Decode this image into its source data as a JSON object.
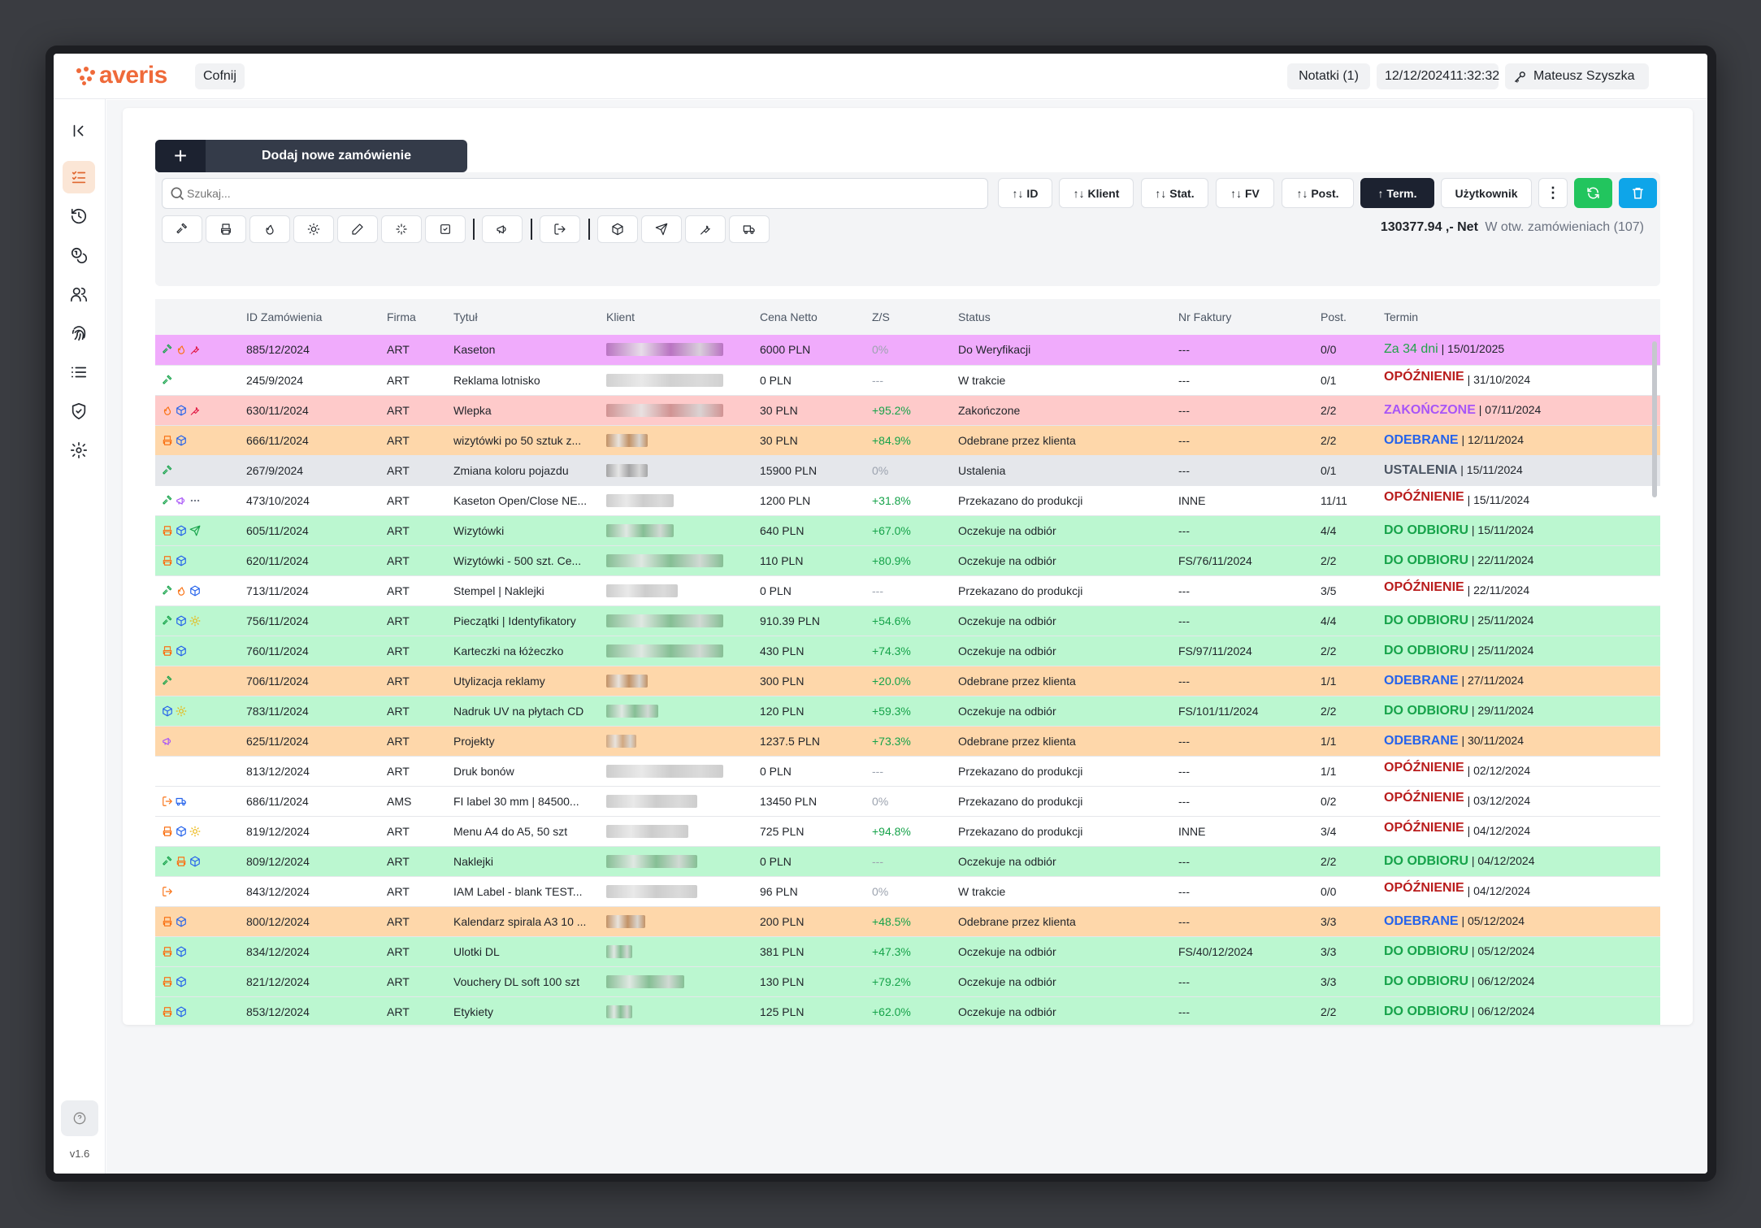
{
  "header": {
    "logo": "averis",
    "back_label": "Cofnij",
    "notes_label": "Notatki (1)",
    "date": "12/12/2024",
    "time": "11:32:32",
    "user": "Mateusz Szyszka"
  },
  "sidebar": {
    "items": [
      {
        "icon": "orders-list-icon",
        "active": true
      },
      {
        "icon": "history-icon"
      },
      {
        "icon": "coins-icon"
      },
      {
        "icon": "users-icon"
      },
      {
        "icon": "fingerprint-icon"
      },
      {
        "icon": "list-icon"
      },
      {
        "icon": "shield-check-icon"
      },
      {
        "icon": "gear-icon"
      }
    ],
    "help_icon": "help-circle-icon",
    "version": "v1.6",
    "logout_icon": "logout-icon"
  },
  "toolbar": {
    "add_label": "Dodaj nowe zamówienie",
    "search_placeholder": "Szukaj...",
    "sort_buttons": [
      {
        "label": "↑↓ ID"
      },
      {
        "label": "↑↓ Klient"
      },
      {
        "label": "↑↓ Stat."
      },
      {
        "label": "↑↓ FV"
      },
      {
        "label": "↑↓ Post."
      },
      {
        "label": "↑ Term.",
        "active": true
      },
      {
        "label": "Użytkownik"
      }
    ],
    "filter_icons": [
      "hammer-icon",
      "printer-icon",
      "flame-icon",
      "sun-icon",
      "pen-icon",
      "sparkle-icon",
      "checkbox-icon",
      "megaphone-icon",
      "exit-icon",
      "box-icon",
      "send-icon",
      "wrench-icon",
      "truck-icon"
    ],
    "summary_total": "130377.94 ,- Net",
    "summary_open": "W otw. zamówieniach (107)"
  },
  "table": {
    "columns": [
      "ID Zamówienia",
      "Firma",
      "Tytuł",
      "Klient",
      "Cena Netto",
      "Z/S",
      "Status",
      "Nr Faktury",
      "Post.",
      "Termin"
    ],
    "rows": [
      {
        "color": "purple",
        "icons": [
          "hammer",
          "flame",
          "wrench"
        ],
        "id": "885/12/2024",
        "firma": "ART",
        "tytul": "Kaseton",
        "klient_blur": 0.9,
        "klient_tone": "#b06ab8",
        "cena": "6000 PLN",
        "zs": "0%",
        "status": "Do Weryfikacji",
        "fv": "---",
        "post": "0/0",
        "term_label": "Za 34 dni",
        "term_kind": "days",
        "term_date": "| 15/01/2025"
      },
      {
        "color": "white",
        "icons": [
          "hammer"
        ],
        "id": "245/9/2024",
        "firma": "ART",
        "tytul": "Reklama lotnisko",
        "klient_blur": 0.9,
        "klient_tone": "#c9c9c9",
        "cena": "0 PLN",
        "zs": "---",
        "status": "W trakcie",
        "fv": "---",
        "post": "0/1",
        "term_label": "OPÓŹNIENIE",
        "term_kind": "delay",
        "term_date": "| 31/10/2024"
      },
      {
        "color": "red",
        "icons": [
          "flame",
          "box",
          "wrench"
        ],
        "id": "630/11/2024",
        "firma": "ART",
        "tytul": "Wlepka",
        "klient_blur": 0.9,
        "klient_tone": "#c98a8a",
        "cena": "30 PLN",
        "zs": "+95.2%",
        "status": "Zakończone",
        "fv": "---",
        "post": "2/2",
        "term_label": "ZAKOŃCZONE",
        "term_kind": "done",
        "term_date": "| 07/11/2024"
      },
      {
        "color": "orange",
        "icons": [
          "printer",
          "box"
        ],
        "id": "666/11/2024",
        "firma": "ART",
        "tytul": "wizytówki po 50 sztuk z...",
        "klient_blur": 0.32,
        "klient_tone": "#b8865a",
        "cena": "30 PLN",
        "zs": "+84.9%",
        "status": "Odebrane przez klienta",
        "fv": "---",
        "post": "2/2",
        "term_label": "ODEBRANE",
        "term_kind": "received",
        "term_date": "| 12/11/2024"
      },
      {
        "color": "gray",
        "icons": [
          "hammer"
        ],
        "id": "267/9/2024",
        "firma": "ART",
        "tytul": "Zmiana koloru pojazdu",
        "klient_blur": 0.32,
        "klient_tone": "#9a9a9a",
        "cena": "15900 PLN",
        "zs": "0%",
        "status": "Ustalenia",
        "fv": "---",
        "post": "0/1",
        "term_label": "USTALENIA",
        "term_kind": "setup",
        "term_date": "| 15/11/2024"
      },
      {
        "color": "white",
        "icons": [
          "hammer",
          "megaphone",
          "dots"
        ],
        "id": "473/10/2024",
        "firma": "ART",
        "tytul": "Kaseton Open/Close NE...",
        "klient_blur": 0.52,
        "klient_tone": "#c4c4c4",
        "cena": "1200 PLN",
        "zs": "+31.8%",
        "status": "Przekazano do produkcji",
        "fv": "INNE",
        "post": "11/11",
        "term_label": "OPÓŹNIENIE",
        "term_kind": "delay",
        "term_date": "| 15/11/2024"
      },
      {
        "color": "green",
        "icons": [
          "printer",
          "box",
          "send"
        ],
        "id": "605/11/2024",
        "firma": "ART",
        "tytul": "Wizytówki",
        "klient_blur": 0.52,
        "klient_tone": "#7cb58a",
        "cena": "640 PLN",
        "zs": "+67.0%",
        "status": "Oczekuje na odbiór",
        "fv": "---",
        "post": "4/4",
        "term_label": "DO ODBIORU",
        "term_kind": "pickup",
        "term_date": "| 15/11/2024"
      },
      {
        "color": "green",
        "icons": [
          "printer",
          "box"
        ],
        "id": "620/11/2024",
        "firma": "ART",
        "tytul": "Wizytówki - 500 szt. Ce...",
        "klient_blur": 0.9,
        "klient_tone": "#7cb58a",
        "cena": "110 PLN",
        "zs": "+80.9%",
        "status": "Oczekuje na odbiór",
        "fv": "FS/76/11/2024",
        "post": "2/2",
        "term_label": "DO ODBIORU",
        "term_kind": "pickup",
        "term_date": "| 22/11/2024"
      },
      {
        "color": "white",
        "icons": [
          "hammer",
          "flame",
          "box"
        ],
        "id": "713/11/2024",
        "firma": "ART",
        "tytul": "Stempel | Naklejki",
        "klient_blur": 0.55,
        "klient_tone": "#c4c4c4",
        "cena": "0 PLN",
        "zs": "---",
        "status": "Przekazano do produkcji",
        "fv": "---",
        "post": "3/5",
        "term_label": "OPÓŹNIENIE",
        "term_kind": "delay",
        "term_date": "| 22/11/2024"
      },
      {
        "color": "green",
        "icons": [
          "hammer",
          "box",
          "sun"
        ],
        "id": "756/11/2024",
        "firma": "ART",
        "tytul": "Pieczątki | Identyfikatory",
        "klient_blur": 0.9,
        "klient_tone": "#7cb58a",
        "cena": "910.39 PLN",
        "zs": "+54.6%",
        "status": "Oczekuje na odbiór",
        "fv": "---",
        "post": "4/4",
        "term_label": "DO ODBIORU",
        "term_kind": "pickup",
        "term_date": "| 25/11/2024"
      },
      {
        "color": "green",
        "icons": [
          "printer",
          "box"
        ],
        "id": "760/11/2024",
        "firma": "ART",
        "tytul": "Karteczki na łóżeczko",
        "klient_blur": 0.9,
        "klient_tone": "#7cb58a",
        "cena": "430 PLN",
        "zs": "+74.3%",
        "status": "Oczekuje na odbiór",
        "fv": "FS/97/11/2024",
        "post": "2/2",
        "term_label": "DO ODBIORU",
        "term_kind": "pickup",
        "term_date": "| 25/11/2024"
      },
      {
        "color": "orange",
        "icons": [
          "hammer"
        ],
        "id": "706/11/2024",
        "firma": "ART",
        "tytul": "Utylizacja reklamy",
        "klient_blur": 0.32,
        "klient_tone": "#b8865a",
        "cena": "300 PLN",
        "zs": "+20.0%",
        "status": "Odebrane przez klienta",
        "fv": "---",
        "post": "1/1",
        "term_label": "ODEBRANE",
        "term_kind": "received",
        "term_date": "| 27/11/2024"
      },
      {
        "color": "green",
        "icons": [
          "box",
          "sun"
        ],
        "id": "783/11/2024",
        "firma": "ART",
        "tytul": "Nadruk UV na płytach CD",
        "klient_blur": 0.4,
        "klient_tone": "#7cb58a",
        "cena": "120 PLN",
        "zs": "+59.3%",
        "status": "Oczekuje na odbiór",
        "fv": "FS/101/11/2024",
        "post": "2/2",
        "term_label": "DO ODBIORU",
        "term_kind": "pickup",
        "term_date": "| 29/11/2024"
      },
      {
        "color": "orange",
        "icons": [
          "megaphone"
        ],
        "id": "625/11/2024",
        "firma": "ART",
        "tytul": "Projekty",
        "klient_blur": 0.23,
        "klient_tone": "#c9a07a",
        "cena": "1237.5 PLN",
        "zs": "+73.3%",
        "status": "Odebrane przez klienta",
        "fv": "---",
        "post": "1/1",
        "term_label": "ODEBRANE",
        "term_kind": "received",
        "term_date": "| 30/11/2024"
      },
      {
        "color": "white",
        "icons": [],
        "id": "813/12/2024",
        "firma": "ART",
        "tytul": "Druk bonów",
        "klient_blur": 0.9,
        "klient_tone": "#c4c4c4",
        "cena": "0 PLN",
        "zs": "---",
        "status": "Przekazano do produkcji",
        "fv": "---",
        "post": "1/1",
        "term_label": "OPÓŹNIENIE",
        "term_kind": "delay",
        "term_date": "| 02/12/2024"
      },
      {
        "color": "white",
        "icons": [
          "exit",
          "truck"
        ],
        "id": "686/11/2024",
        "firma": "AMS",
        "tytul": "FI label 30 mm | 84500...",
        "klient_blur": 0.7,
        "klient_tone": "#c4c4c4",
        "cena": "13450 PLN",
        "zs": "0%",
        "status": "Przekazano do produkcji",
        "fv": "---",
        "post": "0/2",
        "term_label": "OPÓŹNIENIE",
        "term_kind": "delay",
        "term_date": "| 03/12/2024"
      },
      {
        "color": "white",
        "icons": [
          "printer",
          "box",
          "sun"
        ],
        "id": "819/12/2024",
        "firma": "ART",
        "tytul": "Menu A4 do A5, 50 szt",
        "klient_blur": 0.63,
        "klient_tone": "#c4c4c4",
        "cena": "725 PLN",
        "zs": "+94.8%",
        "status": "Przekazano do produkcji",
        "fv": "INNE",
        "post": "3/4",
        "term_label": "OPÓŹNIENIE",
        "term_kind": "delay",
        "term_date": "| 04/12/2024"
      },
      {
        "color": "green",
        "icons": [
          "hammer",
          "printer",
          "box"
        ],
        "id": "809/12/2024",
        "firma": "ART",
        "tytul": "Naklejki",
        "klient_blur": 0.7,
        "klient_tone": "#7cb58a",
        "cena": "0 PLN",
        "zs": "---",
        "status": "Oczekuje na odbiór",
        "fv": "---",
        "post": "2/2",
        "term_label": "DO ODBIORU",
        "term_kind": "pickup",
        "term_date": "| 04/12/2024"
      },
      {
        "color": "white",
        "icons": [
          "exit"
        ],
        "id": "843/12/2024",
        "firma": "ART",
        "tytul": "IAM Label - blank TEST...",
        "klient_blur": 0.7,
        "klient_tone": "#c4c4c4",
        "cena": "96 PLN",
        "zs": "0%",
        "status": "W trakcie",
        "fv": "---",
        "post": "0/0",
        "term_label": "OPÓŹNIENIE",
        "term_kind": "delay",
        "term_date": "| 04/12/2024"
      },
      {
        "color": "orange",
        "icons": [
          "printer",
          "box"
        ],
        "id": "800/12/2024",
        "firma": "ART",
        "tytul": "Kalendarz spirala A3 10 ...",
        "klient_blur": 0.3,
        "klient_tone": "#b8865a",
        "cena": "200 PLN",
        "zs": "+48.5%",
        "status": "Odebrane przez klienta",
        "fv": "---",
        "post": "3/3",
        "term_label": "ODEBRANE",
        "term_kind": "received",
        "term_date": "| 05/12/2024"
      },
      {
        "color": "green",
        "icons": [
          "printer",
          "box"
        ],
        "id": "834/12/2024",
        "firma": "ART",
        "tytul": "Ulotki DL",
        "klient_blur": 0.2,
        "klient_tone": "#7cb58a",
        "cena": "381 PLN",
        "zs": "+47.3%",
        "status": "Oczekuje na odbiór",
        "fv": "FS/40/12/2024",
        "post": "3/3",
        "term_label": "DO ODBIORU",
        "term_kind": "pickup",
        "term_date": "| 05/12/2024"
      },
      {
        "color": "green",
        "icons": [
          "printer",
          "box"
        ],
        "id": "821/12/2024",
        "firma": "ART",
        "tytul": "Vouchery DL soft 100 szt",
        "klient_blur": 0.6,
        "klient_tone": "#7cb58a",
        "cena": "130 PLN",
        "zs": "+79.2%",
        "status": "Oczekuje na odbiór",
        "fv": "---",
        "post": "3/3",
        "term_label": "DO ODBIORU",
        "term_kind": "pickup",
        "term_date": "| 06/12/2024"
      },
      {
        "color": "green",
        "icons": [
          "printer",
          "box"
        ],
        "id": "853/12/2024",
        "firma": "ART",
        "tytul": "Etykiety",
        "klient_blur": 0.2,
        "klient_tone": "#7cb58a",
        "cena": "125 PLN",
        "zs": "+62.0%",
        "status": "Oczekuje na odbiór",
        "fv": "---",
        "post": "2/2",
        "term_label": "DO ODBIORU",
        "term_kind": "pickup",
        "term_date": "| 06/12/2024"
      }
    ]
  }
}
